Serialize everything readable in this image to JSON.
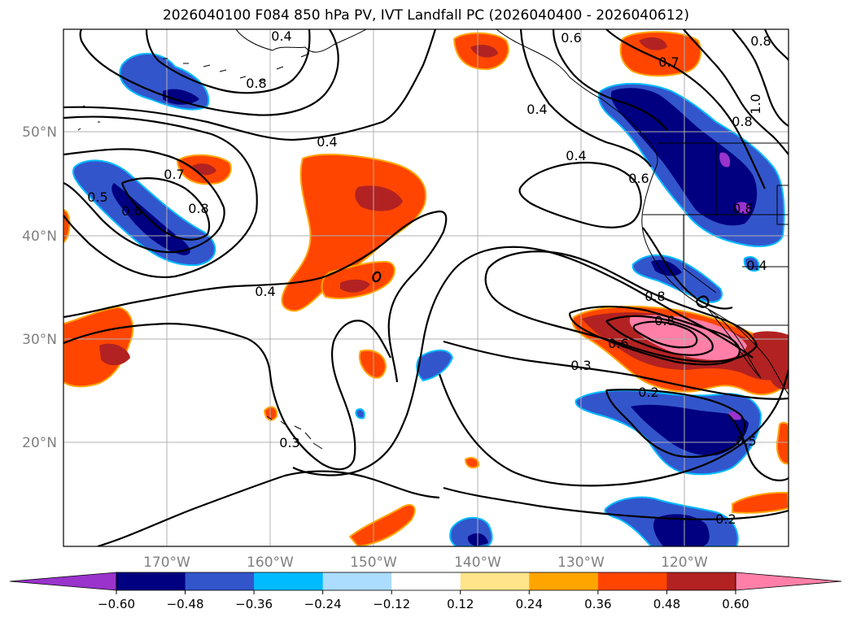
{
  "title": "2026040100 F084 850 hPa PV, IVT Landfall PC (2026040400 - 2026040612)",
  "colors": {
    "lat_label": "#808080",
    "lon_label": "#808080",
    "grid": "#b0b0b0",
    "contour": "#000000",
    "land_outline": "#000000"
  },
  "lat_labels": [
    "50°N",
    "40°N",
    "30°N",
    "20°N"
  ],
  "lon_labels": [
    "170°W",
    "160°W",
    "150°W",
    "140°W",
    "130°W",
    "120°W"
  ],
  "contour_labels": [
    "0.6",
    "0.8",
    "0.7",
    "1.0",
    "0.8",
    "0.4",
    "0.8",
    "0.4",
    "0.4",
    "0.7",
    "0.5",
    "0.6",
    "0.8",
    "0.6",
    "0.4",
    "0.4",
    "0.8",
    "0.8",
    "0.6",
    "0.3",
    "0.2",
    "0.3",
    "0.5",
    "0.2",
    "0.8",
    "0.4"
  ],
  "colorbar": {
    "colors": [
      "#9933cc",
      "#000080",
      "#3355cc",
      "#00bbff",
      "#aaddff",
      "#ffffff",
      "#ffe48a",
      "#ffa500",
      "#ff4500",
      "#b22222",
      "#ff7fa8"
    ],
    "tick_labels": [
      "−0.60",
      "−0.48",
      "−0.36",
      "−0.24",
      "−0.12",
      "0.12",
      "0.24",
      "0.36",
      "0.48",
      "0.60"
    ]
  },
  "chart_data": {
    "type": "map",
    "title": "2026040100 F084 850 hPa PV, IVT Landfall PC (2026040400 - 2026040612)",
    "projection": "PlateCarree",
    "lon_range": [
      -180,
      -110
    ],
    "lat_range": [
      10,
      60
    ],
    "lat_ticks": [
      50,
      40,
      30,
      20
    ],
    "lon_ticks": [
      -170,
      -160,
      -150,
      -140,
      -130,
      -120
    ],
    "filled_field": "IVT Landfall PC (shaded)",
    "contour_field": "850 hPa PV (black contours)",
    "colorbar_levels": [
      -0.6,
      -0.48,
      -0.36,
      -0.24,
      -0.12,
      0.12,
      0.24,
      0.36,
      0.48,
      0.6
    ],
    "colorbar_extend": "both"
  }
}
